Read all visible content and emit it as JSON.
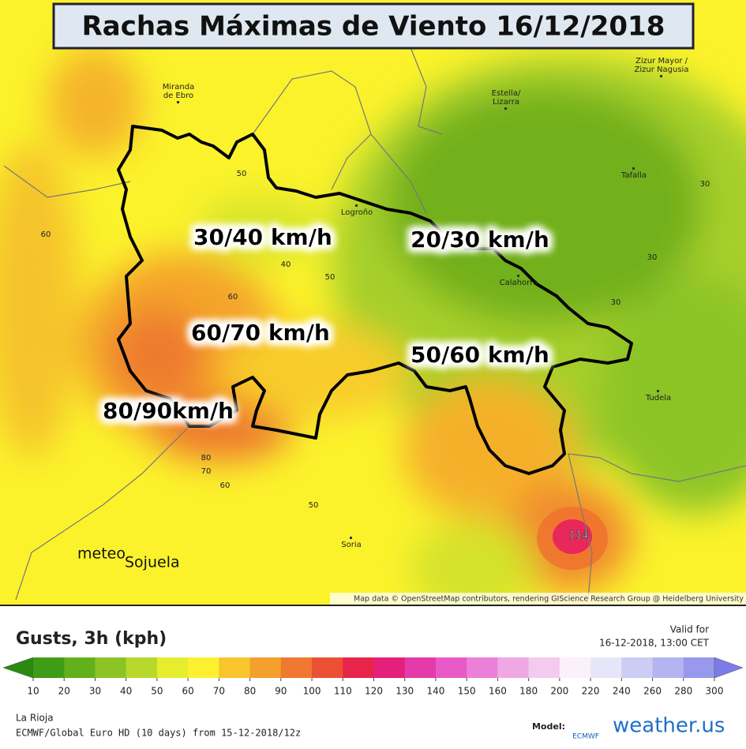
{
  "title": "Rachas Máximas de Viento 16/12/2018",
  "map": {
    "places": [
      "Miranda\nde Ebro",
      "Zizur Mayor /\nZizur Nagusia",
      "Estella/\nLizarra",
      "Tafalla",
      "Logroño",
      "Calahorra",
      "Tudela",
      "Soria"
    ],
    "contour_labels": [
      "50",
      "60",
      "40",
      "50",
      "60",
      "30",
      "30",
      "30",
      "80",
      "70",
      "60",
      "50",
      "114"
    ],
    "zones": [
      "30/40 km/h",
      "20/30 km/h",
      "60/70 km/h",
      "50/60 km/h",
      "80/90km/h"
    ],
    "logo": [
      "meteo",
      "Sojuela"
    ],
    "attribution": "Map data © OpenStreetMap contributors, rendering GIScience Research Group @ Heidelberg University"
  },
  "legend": {
    "title": "Gusts, 3h (kph)",
    "valid_label": "Valid for",
    "valid_time": "16-12-2018, 13:00 CET",
    "ticks": [
      10,
      20,
      30,
      40,
      50,
      60,
      70,
      80,
      90,
      100,
      110,
      120,
      130,
      140,
      150,
      160,
      180,
      200,
      220,
      240,
      260,
      280,
      300
    ],
    "colors": [
      "#2a8a10",
      "#3f9c16",
      "#62b01c",
      "#8cc426",
      "#b8d82c",
      "#e6ec2e",
      "#fdf030",
      "#f9c42c",
      "#f4a02c",
      "#f07830",
      "#ec5034",
      "#e8244a",
      "#e4207a",
      "#e43aaa",
      "#e85ac8",
      "#ec80d8",
      "#f0a8e4",
      "#f4caee",
      "#fcf0fa",
      "#e6e6f8",
      "#ccccf4",
      "#b4b4f0",
      "#9898ec",
      "#7c7ce8"
    ],
    "region": "La Rioja",
    "model_run": "ECMWF/Global Euro HD (10 days) from 15-12-2018/12z",
    "model_label": "Model:",
    "model_logo": "ECMWF",
    "brand": "weather.us"
  }
}
